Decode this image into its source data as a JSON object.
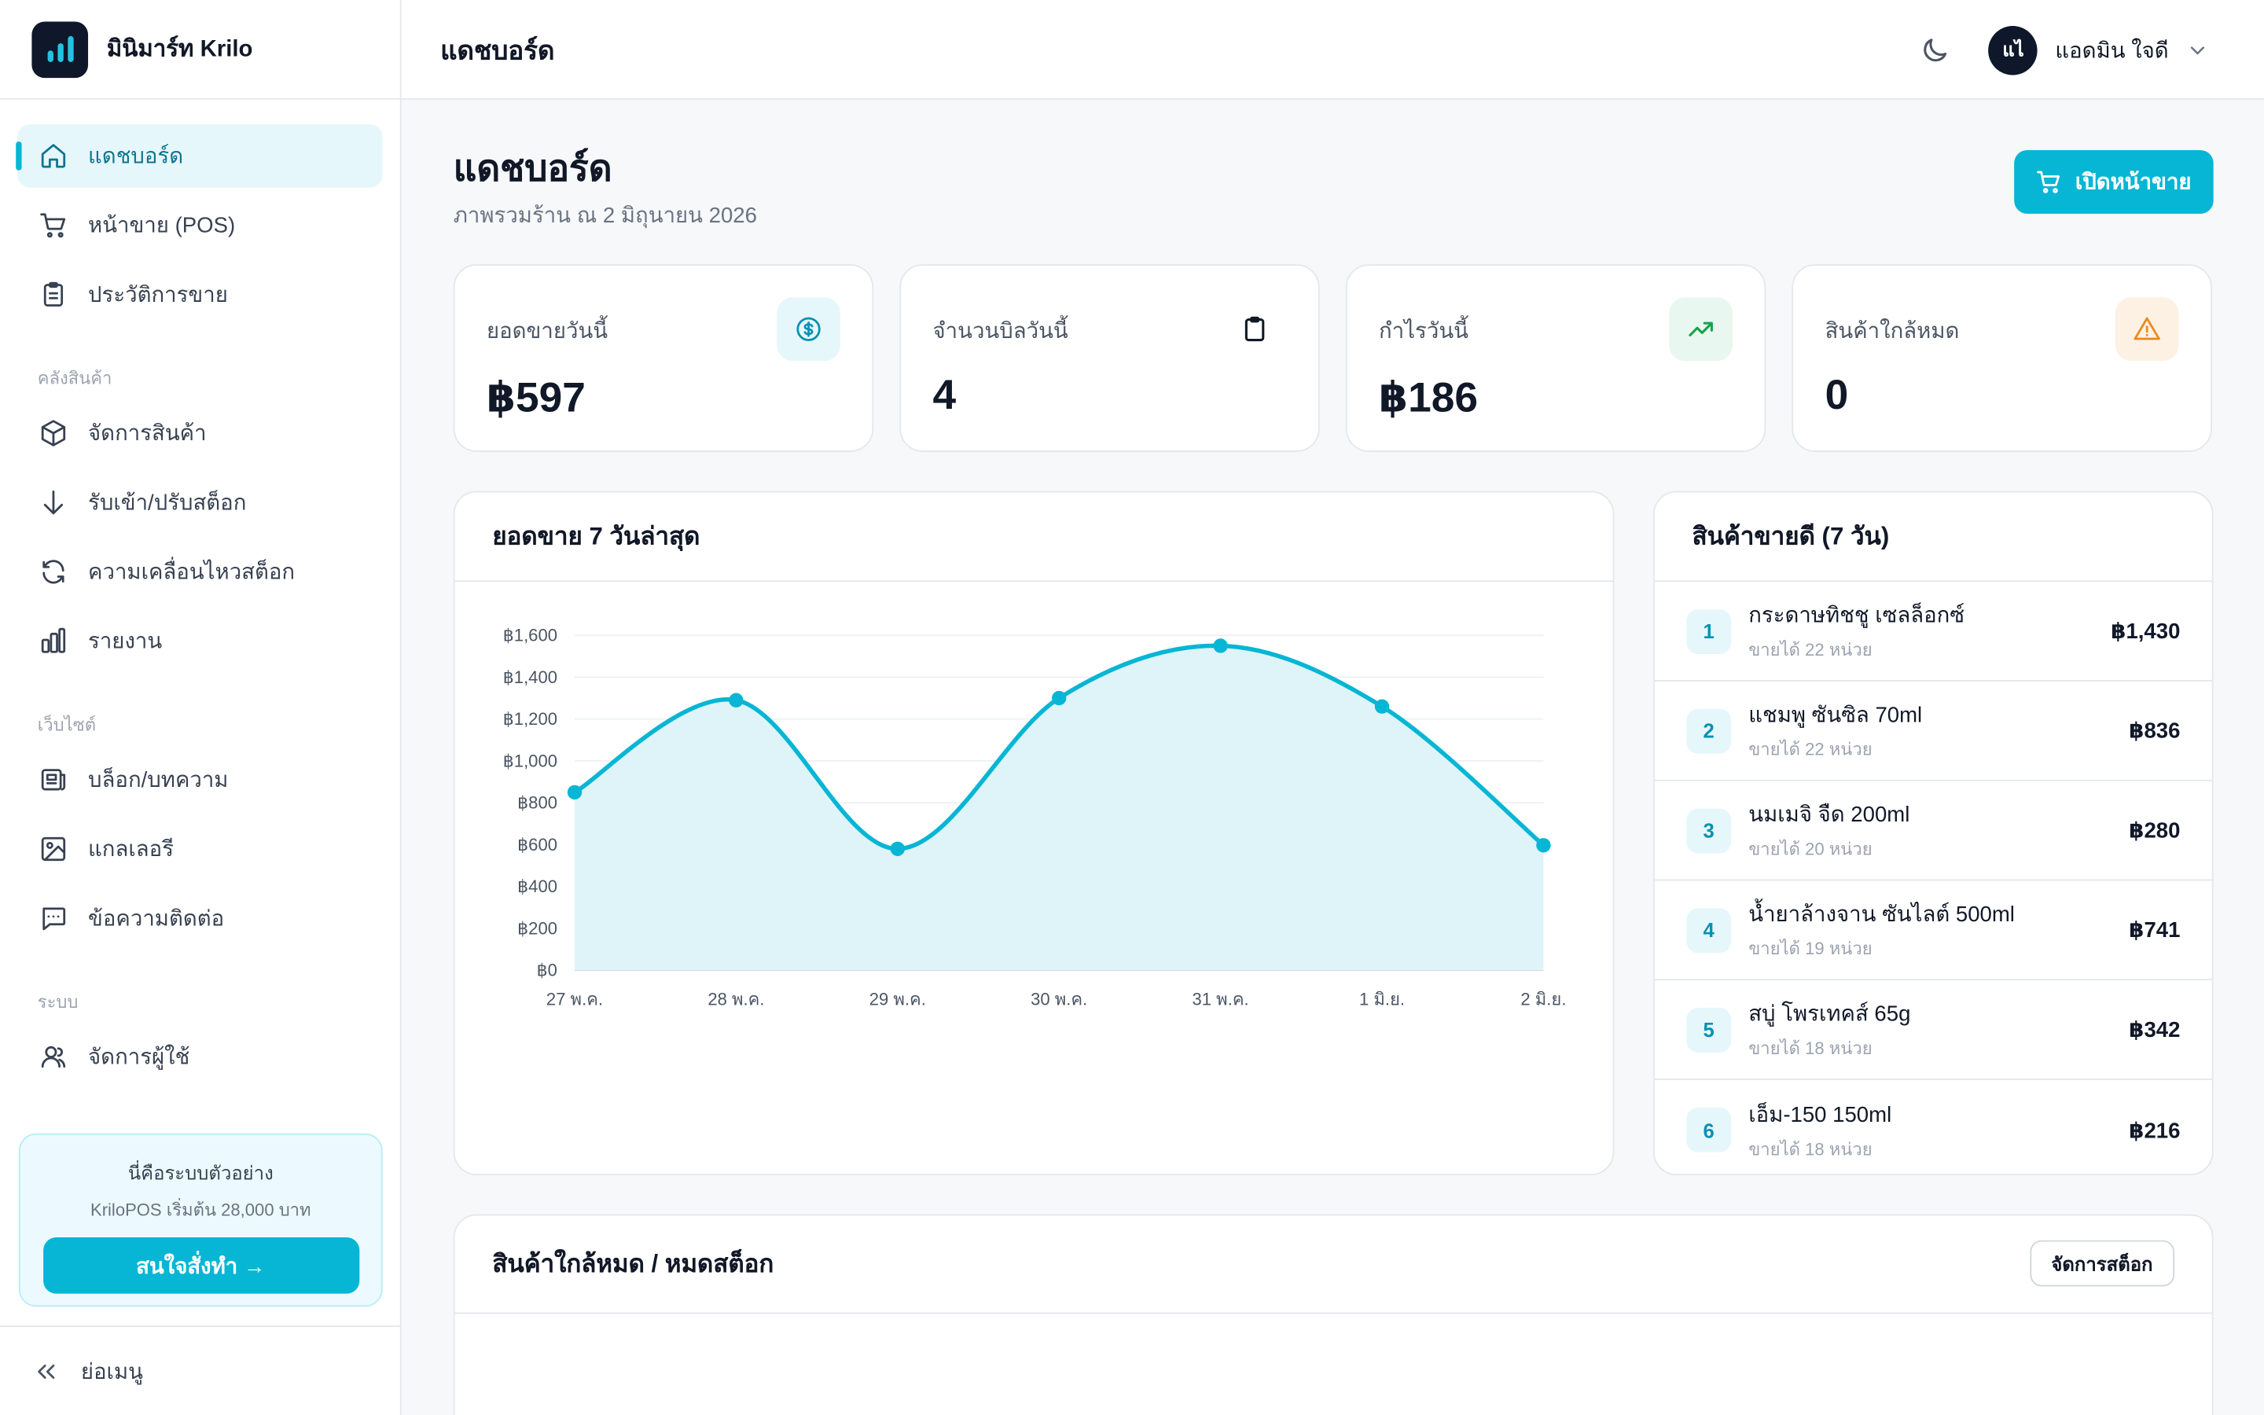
{
  "brand": {
    "name": "มินิมาร์ท Krilo"
  },
  "sidebar": {
    "items_main": [
      {
        "label": "แดชบอร์ด",
        "icon": "home-icon",
        "active": true
      },
      {
        "label": "หน้าขาย (POS)",
        "icon": "cart-icon"
      },
      {
        "label": "ประวัติการขาย",
        "icon": "clipboard-icon"
      }
    ],
    "section_inventory": "คลังสินค้า",
    "items_inventory": [
      {
        "label": "จัดการสินค้า",
        "icon": "box-icon"
      },
      {
        "label": "รับเข้า/ปรับสต็อก",
        "icon": "arrow-down-icon"
      },
      {
        "label": "ความเคลื่อนไหวสต็อก",
        "icon": "refresh-icon"
      },
      {
        "label": "รายงาน",
        "icon": "bar-chart-icon"
      }
    ],
    "section_website": "เว็บไซต์",
    "items_website": [
      {
        "label": "บล็อก/บทความ",
        "icon": "newspaper-icon"
      },
      {
        "label": "แกลเลอรี",
        "icon": "image-icon"
      },
      {
        "label": "ข้อความติดต่อ",
        "icon": "message-icon"
      }
    ],
    "section_system": "ระบบ",
    "items_system": [
      {
        "label": "จัดการผู้ใช้",
        "icon": "users-icon"
      }
    ],
    "promo": {
      "title": "นี่คือระบบตัวอย่าง",
      "subtitle": "KriloPOS เริ่มต้น 28,000 บาท",
      "button": "สนใจสั่งทำ →"
    },
    "collapse_label": "ย่อเมนู"
  },
  "topbar": {
    "title": "แดชบอร์ด",
    "user_initials": "แไ",
    "user_name": "แอดมิน ใจดี"
  },
  "page": {
    "title": "แดชบอร์ด",
    "subtitle": "ภาพรวมร้าน ณ 2 มิถุนายน 2026",
    "open_pos_button": "เปิดหน้าขาย"
  },
  "stats": [
    {
      "label": "ยอดขายวันนี้",
      "value": "฿597",
      "icon": "dollar-icon",
      "icon_bg": "#e6f7fb",
      "icon_color": "#0891b2"
    },
    {
      "label": "จำนวนบิลวันนี้",
      "value": "4",
      "icon": "clipboard-icon",
      "icon_bg": "#ffffff",
      "icon_color": "#111827"
    },
    {
      "label": "กำไรวันนี้",
      "value": "฿186",
      "icon": "trending-up-icon",
      "icon_bg": "#e8f7ef",
      "icon_color": "#16a34a"
    },
    {
      "label": "สินค้าใกล้หมด",
      "value": "0",
      "icon": "warning-icon",
      "icon_bg": "#fdf1e4",
      "icon_color": "#ea8a1e"
    }
  ],
  "sales_card": {
    "title": "ยอดขาย 7 วันล่าสุด"
  },
  "chart_data": {
    "type": "area",
    "title": "ยอดขาย 7 วันล่าสุด",
    "categories": [
      "27 พ.ค.",
      "28 พ.ค.",
      "29 พ.ค.",
      "30 พ.ค.",
      "31 พ.ค.",
      "1 มิ.ย.",
      "2 มิ.ย."
    ],
    "values": [
      850,
      1290,
      580,
      1300,
      1550,
      1260,
      597
    ],
    "y_ticks": [
      "฿0",
      "฿200",
      "฿400",
      "฿600",
      "฿800",
      "฿1,000",
      "฿1,200",
      "฿1,400",
      "฿1,600"
    ],
    "ylim": [
      0,
      1600
    ],
    "color": "#06b6d4",
    "fill": "#dff4f9",
    "grid": true
  },
  "top_products": {
    "title": "สินค้าขายดี (7 วัน)",
    "items": [
      {
        "rank": "1",
        "name": "กระดาษทิชชู เซลล็อกซ์",
        "sold": "ขายได้ 22 หน่วย",
        "amount": "฿1,430"
      },
      {
        "rank": "2",
        "name": "แชมพู ซันซิล 70ml",
        "sold": "ขายได้ 22 หน่วย",
        "amount": "฿836"
      },
      {
        "rank": "3",
        "name": "นมเมจิ จืด 200ml",
        "sold": "ขายได้ 20 หน่วย",
        "amount": "฿280"
      },
      {
        "rank": "4",
        "name": "น้ำยาล้างจาน ซันไลต์ 500ml",
        "sold": "ขายได้ 19 หน่วย",
        "amount": "฿741"
      },
      {
        "rank": "5",
        "name": "สบู่ โพรเทคส์ 65g",
        "sold": "ขายได้ 18 หน่วย",
        "amount": "฿342"
      },
      {
        "rank": "6",
        "name": "เอ็ม-150 150ml",
        "sold": "ขายได้ 18 หน่วย",
        "amount": "฿216"
      }
    ]
  },
  "low_stock": {
    "title": "สินค้าใกล้หมด / หมดสต็อก",
    "button": "จัดการสต็อก"
  }
}
